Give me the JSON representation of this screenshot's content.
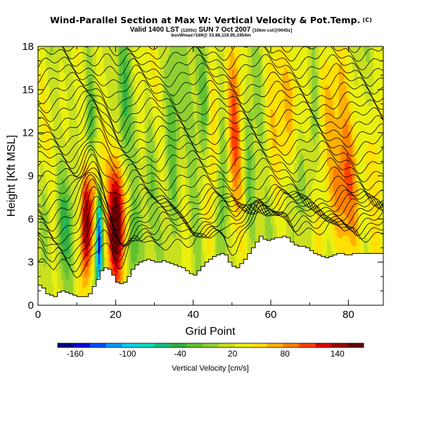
{
  "header": {
    "title": "Wind-Parallel Section at Max W: Vertical Velocity & Pot.Temp.",
    "title_mark": "(C)",
    "valid_main": "Valid 1400 LST",
    "valid_small1": "(1200z)",
    "valid_day": "SUN 7 Oct 2007",
    "valid_small2": "[10km cst@0045z]",
    "subline": "boxWmax=169@ 33.86,119.95,1954m"
  },
  "chart_data": {
    "type": "heatmap",
    "xlabel": "Grid Point",
    "ylabel": "Height [Kft MSL]",
    "xlim": [
      0,
      89
    ],
    "ylim": [
      0,
      18
    ],
    "x_ticks": [
      0,
      20,
      40,
      60,
      80
    ],
    "y_ticks": [
      0,
      3,
      6,
      9,
      12,
      15,
      18
    ],
    "x_ticks_text": [
      "0",
      "20",
      "40",
      "60",
      "80"
    ],
    "y_ticks_text": [
      "0",
      "3",
      "6",
      "9",
      "12",
      "15",
      "18"
    ],
    "contour_field": "potential temperature",
    "colorbar": {
      "title": "Vertical Velocity [cm/s]",
      "ticks": [
        -160,
        -100,
        -40,
        20,
        80,
        140
      ],
      "ticks_text": [
        "-160",
        "-100",
        "-40",
        "20",
        "80",
        "140"
      ],
      "range": [
        -180,
        170
      ],
      "colors": [
        "#00007f",
        "#0000e0",
        "#0050ff",
        "#0099ff",
        "#00d0f0",
        "#00e0c0",
        "#10c080",
        "#30b040",
        "#60c030",
        "#90d030",
        "#c8e020",
        "#e8f010",
        "#ffe000",
        "#ffb000",
        "#ff8000",
        "#ff4000",
        "#e00000",
        "#a00000",
        "#6a0000"
      ]
    },
    "terrain": [
      [
        0,
        1.4
      ],
      [
        1,
        1.2
      ],
      [
        2,
        0.8
      ],
      [
        3,
        0.7
      ],
      [
        4,
        0.6
      ],
      [
        5,
        0.9
      ],
      [
        6,
        1.0
      ],
      [
        7,
        0.9
      ],
      [
        8,
        0.8
      ],
      [
        9,
        0.7
      ],
      [
        10,
        0.6
      ],
      [
        11,
        0.6
      ],
      [
        12,
        0.6
      ],
      [
        13,
        0.8
      ],
      [
        14,
        1.3
      ],
      [
        15,
        1.8
      ],
      [
        16,
        2.4
      ],
      [
        17,
        2.6
      ],
      [
        18,
        2.5
      ],
      [
        19,
        2.1
      ],
      [
        20,
        1.6
      ],
      [
        21,
        1.5
      ],
      [
        22,
        1.6
      ],
      [
        23,
        2.0
      ],
      [
        24,
        2.5
      ],
      [
        25,
        2.8
      ],
      [
        26,
        3.0
      ],
      [
        27,
        3.1
      ],
      [
        28,
        3.2
      ],
      [
        29,
        3.1
      ],
      [
        30,
        3.0
      ],
      [
        31,
        3.0
      ],
      [
        32,
        3.1
      ],
      [
        33,
        3.0
      ],
      [
        34,
        2.9
      ],
      [
        35,
        2.8
      ],
      [
        36,
        2.7
      ],
      [
        37,
        2.6
      ],
      [
        38,
        2.4
      ],
      [
        39,
        2.2
      ],
      [
        40,
        2.1
      ],
      [
        41,
        2.4
      ],
      [
        42,
        2.7
      ],
      [
        43,
        3.0
      ],
      [
        44,
        3.2
      ],
      [
        45,
        3.4
      ],
      [
        46,
        3.5
      ],
      [
        47,
        3.6
      ],
      [
        48,
        3.5
      ],
      [
        49,
        3.0
      ],
      [
        50,
        2.7
      ],
      [
        51,
        2.6
      ],
      [
        52,
        2.9
      ],
      [
        53,
        3.2
      ],
      [
        54,
        3.6
      ],
      [
        55,
        4.0
      ],
      [
        56,
        4.4
      ],
      [
        57,
        4.8
      ],
      [
        58,
        4.6
      ],
      [
        59,
        4.5
      ],
      [
        60,
        4.6
      ],
      [
        61,
        4.7
      ],
      [
        62,
        4.7
      ],
      [
        63,
        4.8
      ],
      [
        64,
        4.7
      ],
      [
        65,
        4.4
      ],
      [
        66,
        4.2
      ],
      [
        67,
        4.1
      ],
      [
        68,
        4.1
      ],
      [
        69,
        4.0
      ],
      [
        70,
        3.8
      ],
      [
        71,
        3.6
      ],
      [
        72,
        3.5
      ],
      [
        73,
        3.4
      ],
      [
        74,
        3.3
      ],
      [
        75,
        3.4
      ],
      [
        76,
        3.5
      ],
      [
        77,
        3.6
      ],
      [
        78,
        3.6
      ],
      [
        79,
        3.5
      ],
      [
        80,
        3.5
      ],
      [
        81,
        3.6
      ],
      [
        82,
        3.6
      ],
      [
        83,
        3.6
      ],
      [
        84,
        3.6
      ],
      [
        85,
        3.6
      ],
      [
        86,
        3.6
      ],
      [
        87,
        3.6
      ],
      [
        88,
        3.6
      ],
      [
        89,
        3.6
      ]
    ],
    "updrafts": [
      {
        "x": 12.5,
        "y": 5.5,
        "sx": 1.1,
        "sy": 3.0,
        "w": 150
      },
      {
        "x": 20.5,
        "y": 6.0,
        "sx": 1.6,
        "sy": 3.0,
        "w": 155
      },
      {
        "x": 15.0,
        "y": 8.5,
        "sx": 1.0,
        "sy": 2.0,
        "w": 70
      },
      {
        "x": 50.5,
        "y": 12.5,
        "sx": 1.4,
        "sy": 5.0,
        "w": 80
      },
      {
        "x": 78.0,
        "y": 8.0,
        "sx": 3.5,
        "sy": 3.5,
        "w": 75
      },
      {
        "x": 66.0,
        "y": 14.0,
        "sx": 2.0,
        "sy": 3.5,
        "w": 45
      },
      {
        "x": 75.0,
        "y": 14.5,
        "sx": 2.0,
        "sy": 3.0,
        "w": 50
      },
      {
        "x": 44.0,
        "y": 8.0,
        "sx": 1.5,
        "sy": 4.0,
        "w": 40
      },
      {
        "x": 5.0,
        "y": 13.0,
        "sx": 2.0,
        "sy": 4.0,
        "w": 25
      },
      {
        "x": 60.0,
        "y": 12.0,
        "sx": 2.0,
        "sy": 4.0,
        "w": 30
      },
      {
        "x": 87.0,
        "y": 10.0,
        "sx": 1.5,
        "sy": 5.0,
        "w": 30
      },
      {
        "x": 30.0,
        "y": 14.0,
        "sx": 1.5,
        "sy": 4.0,
        "w": 25
      }
    ],
    "downdrafts": [
      {
        "x": 15.8,
        "y": 4.5,
        "sx": 0.6,
        "sy": 2.8,
        "w": -170
      },
      {
        "x": 7.0,
        "y": 5.5,
        "sx": 1.5,
        "sy": 2.5,
        "w": -50
      },
      {
        "x": 13.5,
        "y": 12.0,
        "sx": 1.0,
        "sy": 3.0,
        "w": -55
      },
      {
        "x": 22.0,
        "y": 12.5,
        "sx": 1.0,
        "sy": 4.0,
        "w": -40
      },
      {
        "x": 29.0,
        "y": 9.5,
        "sx": 1.2,
        "sy": 4.0,
        "w": -45
      },
      {
        "x": 35.0,
        "y": 12.0,
        "sx": 1.3,
        "sy": 6.0,
        "w": -55
      },
      {
        "x": 43.0,
        "y": 14.5,
        "sx": 1.0,
        "sy": 4.0,
        "w": -50
      },
      {
        "x": 47.5,
        "y": 7.5,
        "sx": 1.2,
        "sy": 4.0,
        "w": -55
      },
      {
        "x": 54.5,
        "y": 9.0,
        "sx": 1.0,
        "sy": 4.0,
        "w": -40
      },
      {
        "x": 67.0,
        "y": 8.5,
        "sx": 1.5,
        "sy": 3.0,
        "w": -35
      },
      {
        "x": 71.0,
        "y": 12.0,
        "sx": 1.0,
        "sy": 4.0,
        "w": -35
      },
      {
        "x": 1.5,
        "y": 5.0,
        "sx": 1.0,
        "sy": 3.0,
        "w": -45
      },
      {
        "x": 24.5,
        "y": 4.5,
        "sx": 1.0,
        "sy": 2.0,
        "w": -45
      }
    ],
    "contours": {
      "count": 29,
      "base_height": 1.6,
      "spacing": 0.6
    }
  }
}
